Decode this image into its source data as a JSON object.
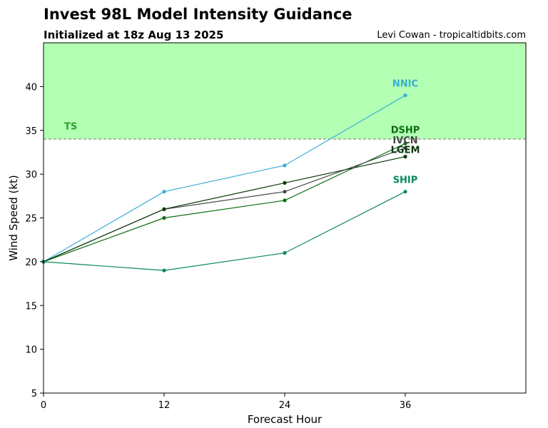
{
  "header": {
    "title": "Invest 98L Model Intensity Guidance",
    "subtitle": "Initialized at 18z Aug 13 2025",
    "credit": "Levi Cowan - tropicaltidbits.com"
  },
  "chart_data": {
    "type": "line",
    "xlabel": "Forecast Hour",
    "ylabel": "Wind Speed (kt)",
    "xlim": [
      0,
      48
    ],
    "ylim": [
      5,
      45
    ],
    "xticks": [
      0,
      12,
      24,
      36
    ],
    "yticks": [
      5,
      10,
      15,
      20,
      25,
      30,
      35,
      40
    ],
    "grid": false,
    "x": [
      0,
      12,
      24,
      36
    ],
    "threshold": {
      "label": "TS",
      "value": 34,
      "fill_color": "#b3ffb3",
      "label_color": "#2ca02c",
      "line_color": "#7a7a7a"
    },
    "series": [
      {
        "name": "NNIC",
        "values": [
          20,
          28,
          31,
          39
        ],
        "color": "#3aaed8"
      },
      {
        "name": "DSHP",
        "values": [
          20,
          25,
          27,
          33.5
        ],
        "color": "#0c6d12"
      },
      {
        "name": "IVCN",
        "values": [
          20,
          26,
          28,
          33
        ],
        "color": "#4a4a4a"
      },
      {
        "name": "LGEM",
        "values": [
          20,
          26,
          29,
          32
        ],
        "color": "#0a3a0a"
      },
      {
        "name": "SHIP",
        "values": [
          20,
          19,
          21,
          28
        ],
        "color": "#078a5a"
      }
    ]
  }
}
